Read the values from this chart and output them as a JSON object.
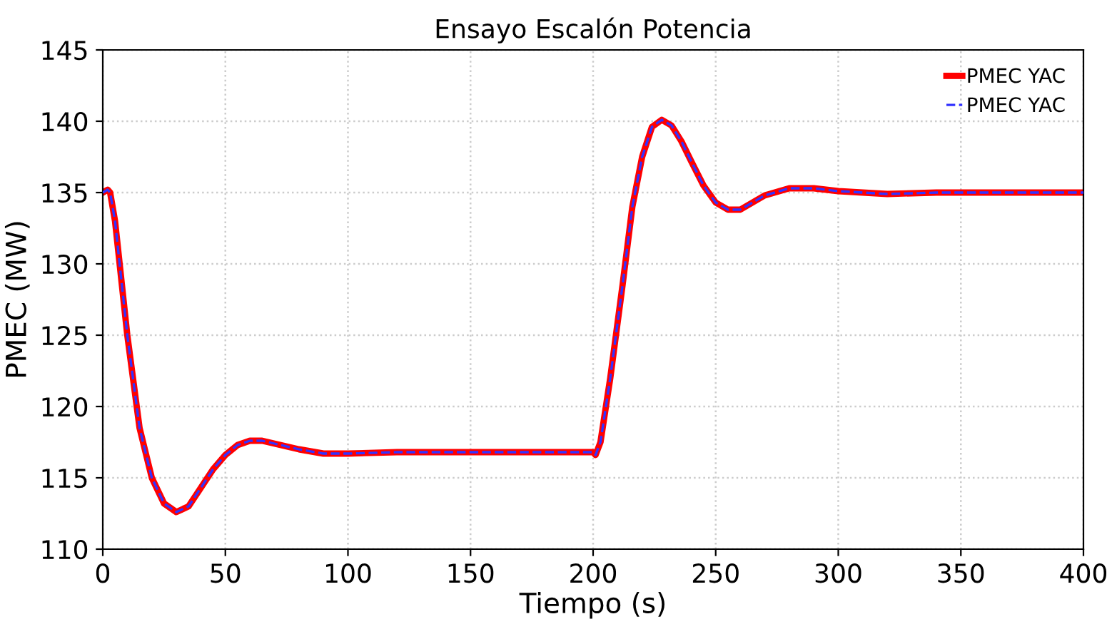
{
  "chart_data": {
    "type": "line",
    "title": "Ensayo Escalón Potencia",
    "xlabel": "Tiempo (s)",
    "ylabel": "PMEC (MW)",
    "x": [
      0,
      2,
      3,
      5,
      10,
      15,
      20,
      25,
      30,
      35,
      40,
      45,
      50,
      55,
      60,
      65,
      70,
      80,
      90,
      100,
      120,
      150,
      200,
      201,
      203,
      207,
      212,
      216,
      220,
      224,
      228,
      232,
      236,
      240,
      245,
      250,
      255,
      260,
      265,
      270,
      280,
      290,
      300,
      310,
      320,
      340,
      400
    ],
    "series": [
      {
        "name": "PMEC YAC",
        "color": "#ff0000",
        "line_style": "solid",
        "values": [
          135,
          135.2,
          135,
          133,
          125,
          118.5,
          115,
          113.2,
          112.6,
          113,
          114.3,
          115.6,
          116.6,
          117.3,
          117.6,
          117.6,
          117.4,
          117,
          116.7,
          116.7,
          116.8,
          116.8,
          116.8,
          116.6,
          117.5,
          122,
          128.5,
          134,
          137.5,
          139.6,
          140.1,
          139.7,
          138.6,
          137.2,
          135.5,
          134.3,
          133.8,
          133.8,
          134.3,
          134.8,
          135.3,
          135.3,
          135.1,
          135,
          134.9,
          135,
          135
        ]
      },
      {
        "name": "PMEC YAC",
        "color": "#3333ff",
        "line_style": "dashed",
        "values": [
          135,
          135.2,
          135,
          133,
          125,
          118.5,
          115,
          113.2,
          112.6,
          113,
          114.3,
          115.6,
          116.6,
          117.3,
          117.6,
          117.6,
          117.4,
          117,
          116.7,
          116.7,
          116.8,
          116.8,
          116.8,
          116.6,
          117.5,
          122,
          128.5,
          134,
          137.5,
          139.6,
          140.1,
          139.7,
          138.6,
          137.2,
          135.5,
          134.3,
          133.8,
          133.8,
          134.3,
          134.8,
          135.3,
          135.3,
          135.1,
          135,
          134.9,
          135,
          135
        ]
      }
    ],
    "xlim": [
      0,
      400
    ],
    "xticks": [
      0,
      50,
      100,
      150,
      200,
      250,
      300,
      350,
      400
    ],
    "ylim": [
      110,
      145
    ],
    "yticks": [
      110,
      115,
      120,
      125,
      130,
      135,
      140,
      145
    ],
    "grid": true,
    "legend": "top right"
  }
}
